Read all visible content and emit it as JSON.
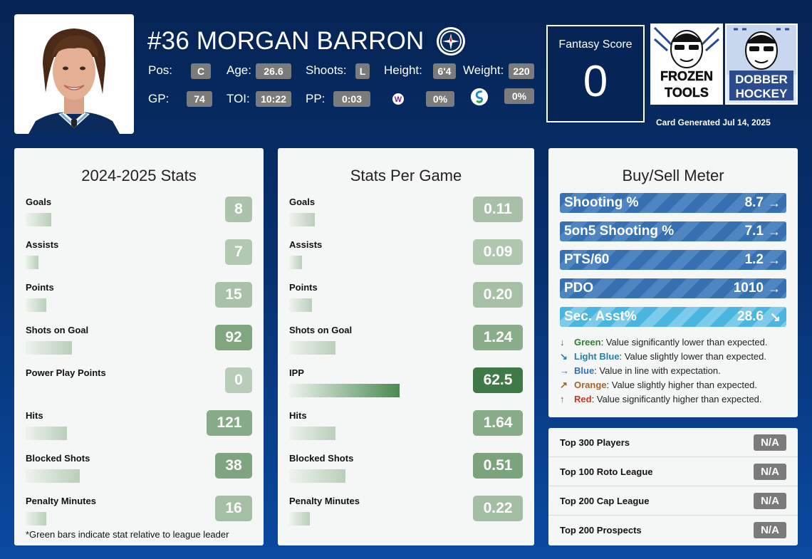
{
  "player": {
    "name": "#36 MORGAN BARRON",
    "pos_label": "Pos:",
    "pos": "C",
    "age_label": "Age:",
    "age": "26.6",
    "shoots_label": "Shoots:",
    "shoots": "L",
    "height_label": "Height:",
    "height": "6'4",
    "weight_label": "Weight:",
    "weight": "220",
    "gp_label": "GP:",
    "gp": "74",
    "toi_label": "TOI:",
    "toi": "10:22",
    "pp_label": "PP:",
    "pp": "0:03",
    "icon1_pct": "0%",
    "icon2_pct": "0%"
  },
  "fantasy": {
    "title": "Fantasy Score",
    "score": "0"
  },
  "generated": "Card Generated Jul 14, 2025",
  "season_stats": {
    "title": "2024-2025 Stats",
    "footnote": "*Green bars indicate stat relative to league leader",
    "rows": [
      {
        "label": "Goals",
        "value": "8",
        "bar": 0.1,
        "shade": "#aac3aa"
      },
      {
        "label": "Assists",
        "value": "7",
        "bar": 0.05,
        "shade": "#b1c9b1"
      },
      {
        "label": "Points",
        "value": "15",
        "bar": 0.08,
        "shade": "#a8c1a8"
      },
      {
        "label": "Shots on Goal",
        "value": "92",
        "bar": 0.18,
        "shade": "#7fa67f"
      },
      {
        "label": "Power Play Points",
        "value": "0",
        "bar": 0.0,
        "shade": "#b7cdb7"
      },
      {
        "label": "Hits",
        "value": "121",
        "bar": 0.16,
        "shade": "#86ab86"
      },
      {
        "label": "Blocked Shots",
        "value": "38",
        "bar": 0.21,
        "shade": "#7ea57e"
      },
      {
        "label": "Penalty Minutes",
        "value": "16",
        "bar": 0.08,
        "shade": "#a4bfa4"
      }
    ]
  },
  "per_game": {
    "title": "Stats Per Game",
    "rows": [
      {
        "label": "Goals",
        "value": "0.11",
        "bar": 0.1,
        "shade": "#a7c0a7"
      },
      {
        "label": "Assists",
        "value": "0.09",
        "bar": 0.05,
        "shade": "#aec7ae"
      },
      {
        "label": "Points",
        "value": "0.20",
        "bar": 0.09,
        "shade": "#a6c0a6"
      },
      {
        "label": "Shots on Goal",
        "value": "1.24",
        "bar": 0.18,
        "shade": "#88ad88"
      },
      {
        "label": "IPP",
        "value": "62.5",
        "bar": 0.43,
        "shade": "#3f7a46",
        "strong": true
      },
      {
        "label": "Hits",
        "value": "1.64",
        "bar": 0.18,
        "shade": "#87ac87"
      },
      {
        "label": "Blocked Shots",
        "value": "0.51",
        "bar": 0.22,
        "shade": "#7ca47c"
      },
      {
        "label": "Penalty Minutes",
        "value": "0.22",
        "bar": 0.08,
        "shade": "#a3bea3"
      }
    ]
  },
  "buy_sell": {
    "title": "Buy/Sell Meter",
    "rows": [
      {
        "label": "Shooting %",
        "value": "8.7",
        "arrow": "→",
        "style": "blue"
      },
      {
        "label": "5on5 Shooting %",
        "value": "7.1",
        "arrow": "→",
        "style": "blue"
      },
      {
        "label": "PTS/60",
        "value": "1.2",
        "arrow": "→",
        "style": "blue"
      },
      {
        "label": "PDO",
        "value": "1010",
        "arrow": "→",
        "style": "blue"
      },
      {
        "label": "Sec. Asst%",
        "value": "28.6",
        "arrow": "↘",
        "style": "light"
      }
    ],
    "legend": [
      {
        "arrow": "↓",
        "color_name": "Green",
        "text": ": Value significantly lower than expected.",
        "color": "#2e7d32"
      },
      {
        "arrow": "↘",
        "color_name": "Light Blue",
        "text": ": Value slightly lower than expected.",
        "color": "#2a7fa8"
      },
      {
        "arrow": "→",
        "color_name": "Blue",
        "text": ": Value in line with expectation.",
        "color": "#3670b0"
      },
      {
        "arrow": "↗",
        "color_name": "Orange",
        "text": ": Value slightly higher than expected.",
        "color": "#a0662a"
      },
      {
        "arrow": "↑",
        "color_name": "Red",
        "text": ": Value significantly higher than expected.",
        "color": "#c0392b"
      }
    ]
  },
  "rankings": [
    {
      "label": "Top 300 Players",
      "value": "N/A"
    },
    {
      "label": "Top 100 Roto League",
      "value": "N/A"
    },
    {
      "label": "Top 200 Cap League",
      "value": "N/A"
    },
    {
      "label": "Top 200 Prospects",
      "value": "N/A"
    }
  ],
  "logos": {
    "frozen_tools": [
      "FROZEN",
      "TOOLS"
    ],
    "dobber_hockey": [
      "DOBBER",
      "HOCKEY"
    ]
  }
}
